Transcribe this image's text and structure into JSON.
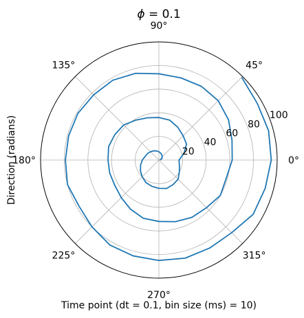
{
  "chart_data": {
    "type": "line",
    "projection": "polar",
    "title": "ϕ = 0.1",
    "title_parts": {
      "symbol": "ϕ",
      "rest": " = 0.1"
    },
    "xlabel": "Time point (dt = 0.1, bin size (ms) = 10)",
    "ylabel": "Direction (radians)",
    "angle_unit": "degrees",
    "angle_ticks": [
      0,
      45,
      90,
      135,
      180,
      225,
      270,
      315
    ],
    "angle_tick_labels": [
      "0°",
      "45°",
      "90°",
      "135°",
      "180°",
      "225°",
      "270°",
      "315°"
    ],
    "radial_ticks": [
      20,
      40,
      60,
      80,
      100
    ],
    "radial_tick_labels": [
      "20",
      "40",
      "60",
      "80",
      "100"
    ],
    "radial_label_angle_deg": 22.5,
    "rlim": [
      0,
      100
    ],
    "grid": true,
    "line_color": "#1f77b4",
    "series": [
      {
        "theta_deg": [
          0,
          15,
          30,
          45,
          60,
          75,
          90,
          105,
          120,
          135,
          150,
          165,
          180,
          195,
          210,
          225,
          240,
          255,
          270,
          285,
          300,
          315,
          330,
          345,
          360,
          375,
          390,
          405,
          420,
          435,
          450,
          465,
          480,
          495,
          510,
          525,
          540,
          555,
          570,
          585,
          600,
          615,
          630,
          645,
          660,
          675,
          690,
          705,
          720,
          735,
          750,
          765,
          780,
          795,
          810,
          825,
          840,
          855,
          870,
          885,
          900,
          915,
          930,
          945,
          960,
          975,
          990,
          1005,
          1020,
          1035,
          1050,
          1065,
          1080,
          1095,
          1110,
          1125
        ],
        "r": [
          1,
          2,
          3,
          4,
          5,
          6,
          7,
          8,
          9,
          10,
          11,
          12,
          14,
          16,
          18,
          20,
          22,
          23,
          24,
          25,
          24,
          23,
          20,
          18,
          17,
          22,
          27,
          29,
          32,
          35,
          36,
          37,
          39,
          42,
          43,
          44,
          43,
          43,
          43,
          45,
          48,
          51,
          52,
          54,
          56,
          57,
          60,
          59,
          62,
          64,
          68,
          71,
          72,
          72,
          73,
          76,
          78,
          78,
          79,
          79,
          79,
          80,
          78,
          80,
          83,
          84,
          85,
          86,
          86,
          87,
          92,
          93,
          95,
          96,
          96,
          99
        ]
      }
    ]
  }
}
